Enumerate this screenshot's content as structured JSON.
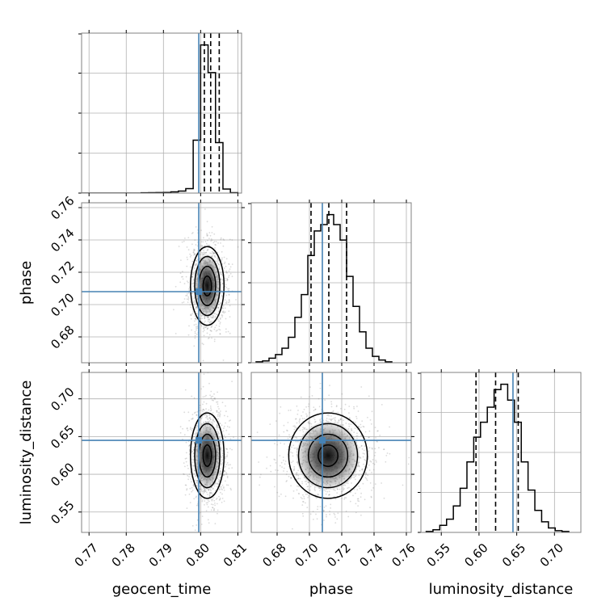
{
  "chart_data": {
    "type": "corner",
    "parameters": [
      {
        "name": "geocent_time",
        "label": "geocent_time",
        "range": [
          0.768,
          0.811
        ],
        "ticks": [
          0.77,
          0.78,
          0.79,
          0.8,
          0.81
        ],
        "tick_labels": [
          "0.77",
          "0.78",
          "0.79",
          "0.80",
          "0.81"
        ],
        "injection": 0.7995,
        "quantiles": [
          0.801,
          0.8027,
          0.805
        ],
        "hist_edges": [
          0.768,
          0.77,
          0.772,
          0.774,
          0.776,
          0.778,
          0.78,
          0.782,
          0.784,
          0.786,
          0.788,
          0.79,
          0.792,
          0.794,
          0.796,
          0.798,
          0.8,
          0.802,
          0.804,
          0.806,
          0.808,
          0.81
        ],
        "hist_counts": [
          0,
          0,
          0,
          0,
          0,
          0,
          0,
          0,
          0.4,
          0.5,
          0.6,
          0.8,
          1.5,
          2.5,
          5.5,
          65,
          182,
          148,
          62,
          5,
          0.5
        ]
      },
      {
        "name": "phase",
        "label": "phase",
        "range": [
          0.664,
          0.763
        ],
        "ticks": [
          0.68,
          0.7,
          0.72,
          0.74,
          0.76
        ],
        "tick_labels": [
          "0.68",
          "0.70",
          "0.72",
          "0.74",
          "0.76"
        ],
        "injection": 0.708,
        "quantiles": [
          0.701,
          0.712,
          0.723
        ],
        "hist_edges": [
          0.667,
          0.671,
          0.675,
          0.679,
          0.683,
          0.687,
          0.691,
          0.695,
          0.699,
          0.703,
          0.707,
          0.711,
          0.715,
          0.719,
          0.723,
          0.727,
          0.731,
          0.735,
          0.739,
          0.743,
          0.747,
          0.751
        ],
        "hist_counts": [
          1,
          2,
          5,
          9,
          16,
          28,
          50,
          75,
          118,
          145,
          152,
          163,
          152,
          135,
          95,
          62,
          34,
          16,
          7,
          3,
          1
        ]
      },
      {
        "name": "luminosity_distance",
        "label": "luminosity_distance",
        "range": [
          0.523,
          0.735
        ],
        "ticks": [
          0.55,
          0.6,
          0.65,
          0.7
        ],
        "tick_labels": [
          "0.55",
          "0.60",
          "0.65",
          "0.70"
        ],
        "injection": 0.645,
        "quantiles": [
          0.596,
          0.622,
          0.652
        ],
        "hist_edges": [
          0.53,
          0.539,
          0.548,
          0.557,
          0.566,
          0.575,
          0.584,
          0.593,
          0.602,
          0.611,
          0.62,
          0.629,
          0.638,
          0.647,
          0.656,
          0.665,
          0.674,
          0.683,
          0.692,
          0.701,
          0.71,
          0.719
        ],
        "hist_counts": [
          1,
          3,
          8,
          15,
          30,
          50,
          80,
          108,
          125,
          142,
          162,
          168,
          150,
          125,
          80,
          48,
          25,
          12,
          5,
          2,
          1
        ]
      }
    ],
    "correlations": {
      "geocent_time|phase": 0.02,
      "geocent_time|luminosity_distance": -0.02,
      "phase|luminosity_distance": -0.02
    },
    "colors": {
      "injection": "#4682b4",
      "contour": "#000000",
      "grid": "#b0b0b0",
      "scatter": "#7f7f7f"
    },
    "grid": true
  }
}
